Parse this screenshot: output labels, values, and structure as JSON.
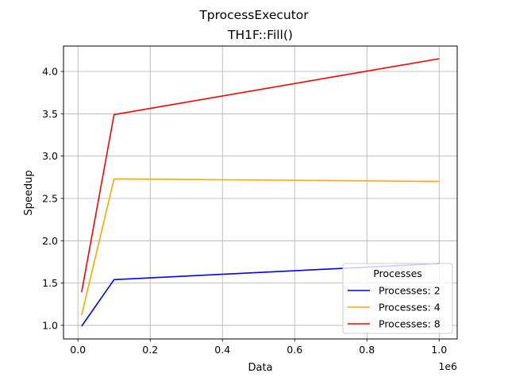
{
  "chart_data": {
    "type": "line",
    "title": "TprocessExecutor",
    "subtitle": "TH1F::Fill()",
    "xlabel": "Data",
    "ylabel": "Speedup",
    "x_offset_label": "1e6",
    "x": [
      10000,
      100000,
      1000000
    ],
    "xlim": [
      -40000,
      1050000
    ],
    "ylim": [
      0.84,
      4.3
    ],
    "xticks": [
      0,
      200000,
      400000,
      600000,
      800000,
      1000000
    ],
    "xtick_labels": [
      "0.0",
      "0.2",
      "0.4",
      "0.6",
      "0.8",
      "1.0"
    ],
    "yticks": [
      1.0,
      1.5,
      2.0,
      2.5,
      3.0,
      3.5,
      4.0
    ],
    "ytick_labels": [
      "1.0",
      "1.5",
      "2.0",
      "2.5",
      "3.0",
      "3.5",
      "4.0"
    ],
    "grid": true,
    "legend": {
      "title": "Processes",
      "placement": "lower-right"
    },
    "series": [
      {
        "name": "Processes: 2",
        "color": "#0000ff",
        "values": [
          0.99,
          1.54,
          1.73
        ]
      },
      {
        "name": "Processes: 4",
        "color": "#ffa500",
        "values": [
          1.12,
          2.73,
          2.7
        ]
      },
      {
        "name": "Processes: 8",
        "color": "#ff0000",
        "values": [
          1.39,
          3.49,
          4.15
        ]
      }
    ]
  }
}
